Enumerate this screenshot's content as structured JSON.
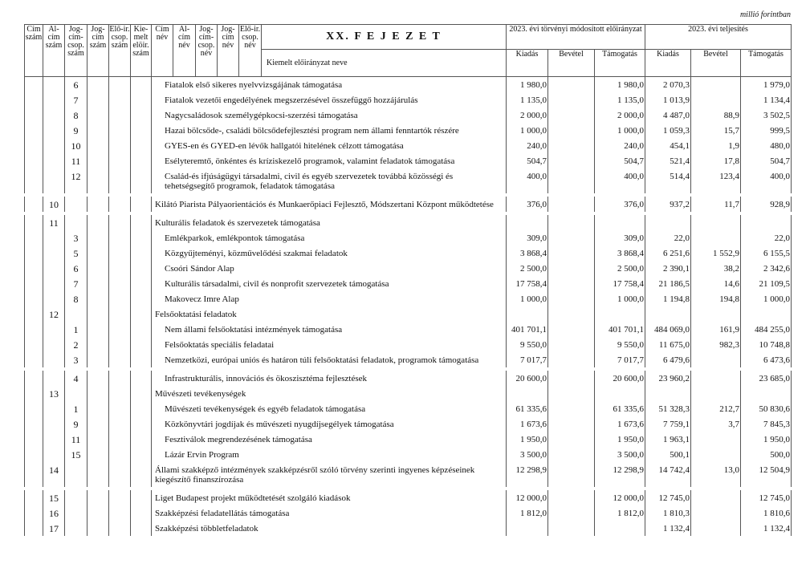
{
  "unit": "millió forintban",
  "header": {
    "code_cols": [
      "Cím szám",
      "Al-cím szám",
      "Jog-cím-csop. szám",
      "Jog-cím szám",
      "Elő-ir. csop. szám",
      "Kie-melt elöir. szám",
      "Cím név",
      "Al-cím név",
      "Jog-cím-csop. név",
      "Jog-cím név",
      "Elő-ir. csop. név"
    ],
    "chapter": "XX. F E J E Z E T",
    "name_col": "Kiemelt előirányzat neve",
    "group1": "2023. évi törvényi módosított előirányzat",
    "group2": "2023. évi teljesítés",
    "sub": [
      "Kiadás",
      "Bevétel",
      "Támogatás",
      "Kiadás",
      "Bevétel",
      "Támogatás"
    ]
  },
  "rows": [
    {
      "alcim": "",
      "jcs": "6",
      "name": "Fiatalok első sikeres nyelvvizsgájának támogatása",
      "v": [
        "1 980,0",
        "",
        "1 980,0",
        "2 070,3",
        "",
        "1 979,0"
      ]
    },
    {
      "alcim": "",
      "jcs": "7",
      "name": "Fiatalok vezetői engedélyének megszerzésével összefüggő hozzájárulás",
      "v": [
        "1 135,0",
        "",
        "1 135,0",
        "1 013,9",
        "",
        "1 134,4"
      ]
    },
    {
      "alcim": "",
      "jcs": "8",
      "name": "Nagycsaládosok személygépkocsi-szerzési támogatása",
      "v": [
        "2 000,0",
        "",
        "2 000,0",
        "4 487,0",
        "88,9",
        "3 502,5"
      ]
    },
    {
      "alcim": "",
      "jcs": "9",
      "name": "Hazai bölcsőde-, családi bölcsődefejlesztési program nem állami fenntartók részére",
      "v": [
        "1 000,0",
        "",
        "1 000,0",
        "1 059,3",
        "15,7",
        "999,5"
      ]
    },
    {
      "alcim": "",
      "jcs": "10",
      "name": "GYES-en és GYED-en lévők hallgatói hitelének célzott támogatása",
      "v": [
        "240,0",
        "",
        "240,0",
        "454,1",
        "1,9",
        "480,0"
      ]
    },
    {
      "alcim": "",
      "jcs": "11",
      "name": "Esélyteremtő, önkéntes és kríziskezelő programok, valamint feladatok támogatása",
      "v": [
        "504,7",
        "",
        "504,7",
        "521,4",
        "17,8",
        "504,7"
      ]
    },
    {
      "alcim": "",
      "jcs": "12",
      "name": "Család-és ifjúságügyi társadalmi, civil és egyéb szervezetek továbbá közösségi és tehetségsegítő programok, feladatok  támogatása",
      "v": [
        "400,0",
        "",
        "400,0",
        "514,4",
        "123,4",
        "400,0"
      ],
      "gap": true
    },
    {
      "alcim": "10",
      "jcs": "",
      "name": "Kilátó Piarista Pályaorientációs és Munkaerőpiaci Fejlesztő, Módszertani Központ működtetése",
      "v": [
        "376,0",
        "",
        "376,0",
        "937,2",
        "11,7",
        "928,9"
      ],
      "gap": true
    },
    {
      "alcim": "11",
      "jcs": "",
      "name": "Kulturális feladatok és szervezetek támogatása",
      "v": [
        "",
        "",
        "",
        "",
        "",
        ""
      ]
    },
    {
      "alcim": "",
      "jcs": "3",
      "name": "Emlékparkok, emlékpontok támogatása",
      "v": [
        "309,0",
        "",
        "309,0",
        "22,0",
        "",
        "22,0"
      ]
    },
    {
      "alcim": "",
      "jcs": "5",
      "name": "Közgyűjteményi, közművelődési szakmai feladatok",
      "v": [
        "3 868,4",
        "",
        "3 868,4",
        "6 251,6",
        "1 552,9",
        "6 155,5"
      ]
    },
    {
      "alcim": "",
      "jcs": "6",
      "name": "Csoóri Sándor Alap",
      "v": [
        "2 500,0",
        "",
        "2 500,0",
        "2 390,1",
        "38,2",
        "2 342,6"
      ]
    },
    {
      "alcim": "",
      "jcs": "7",
      "name": "Kulturális társadalmi, civil és nonprofit szervezetek támogatása",
      "v": [
        "17 758,4",
        "",
        "17 758,4",
        "21 186,5",
        "14,6",
        "21 109,5"
      ]
    },
    {
      "alcim": "",
      "jcs": "8",
      "name": "Makovecz Imre Alap",
      "v": [
        "1 000,0",
        "",
        "1 000,0",
        "1 194,8",
        "194,8",
        "1 000,0"
      ]
    },
    {
      "alcim": "12",
      "jcs": "",
      "name": "Felsőoktatási feladatok",
      "v": [
        "",
        "",
        "",
        "",
        "",
        ""
      ]
    },
    {
      "alcim": "",
      "jcs": "1",
      "name": "Nem állami felsőoktatási intézmények támogatása",
      "v": [
        "401 701,1",
        "",
        "401 701,1",
        "484 069,0",
        "161,9",
        "484 255,0"
      ]
    },
    {
      "alcim": "",
      "jcs": "2",
      "name": "Felsőoktatás speciális feladatai",
      "v": [
        "9 550,0",
        "",
        "9 550,0",
        "11 675,0",
        "982,3",
        "10 748,8"
      ]
    },
    {
      "alcim": "",
      "jcs": "3",
      "name": "Nemzetközi, európai uniós és határon túli felsőoktatási feladatok, programok támogatása",
      "v": [
        "7 017,7",
        "",
        "7 017,7",
        "6 479,6",
        "",
        "6 473,6"
      ],
      "gap": true
    },
    {
      "alcim": "",
      "jcs": "4",
      "name": "Infrastrukturális, innovációs és ökoszisztéma fejlesztések",
      "v": [
        "20 600,0",
        "",
        "20 600,0",
        "23 960,2",
        "",
        "23 685,0"
      ]
    },
    {
      "alcim": "13",
      "jcs": "",
      "name": "Művészeti tevékenységek",
      "v": [
        "",
        "",
        "",
        "",
        "",
        ""
      ]
    },
    {
      "alcim": "",
      "jcs": "1",
      "name": "Művészeti tevékenységek és egyéb feladatok támogatása",
      "v": [
        "61 335,6",
        "",
        "61 335,6",
        "51 328,3",
        "212,7",
        "50 830,6"
      ]
    },
    {
      "alcim": "",
      "jcs": "9",
      "name": "Közkönyvtári jogdíjak és művészeti nyugdíjsegélyek támogatása",
      "v": [
        "1 673,6",
        "",
        "1 673,6",
        "7 759,1",
        "3,7",
        "7 845,3"
      ]
    },
    {
      "alcim": "",
      "jcs": "11",
      "name": "Fesztiválok megrendezésének támogatása",
      "v": [
        "1 950,0",
        "",
        "1 950,0",
        "1 963,1",
        "",
        "1 950,0"
      ]
    },
    {
      "alcim": "",
      "jcs": "15",
      "name": "Lázár Ervin Program",
      "v": [
        "3 500,0",
        "",
        "3 500,0",
        "500,1",
        "",
        "500,0"
      ]
    },
    {
      "alcim": "14",
      "jcs": "",
      "name": "Állami szakképző intézmények szakképzésről szóló törvény szerinti ingyenes képzéseinek kiegészítő finanszírozása",
      "v": [
        "12 298,9",
        "",
        "12 298,9",
        "14 742,4",
        "13,0",
        "12 504,9"
      ],
      "gap": true
    },
    {
      "alcim": "15",
      "jcs": "",
      "name": "Liget Budapest projekt működtetését szolgáló kiadások",
      "v": [
        "12 000,0",
        "",
        "12 000,0",
        "12 745,0",
        "",
        "12 745,0"
      ]
    },
    {
      "alcim": "16",
      "jcs": "",
      "name": "Szakképzési feladatellátás támogatása",
      "v": [
        "1 812,0",
        "",
        "1 812,0",
        "1 810,3",
        "",
        "1 810,6"
      ]
    },
    {
      "alcim": "17",
      "jcs": "",
      "name": "Szakképzési többletfeladatok",
      "v": [
        "",
        "",
        "",
        "1 132,4",
        "",
        "1 132,4"
      ]
    }
  ]
}
